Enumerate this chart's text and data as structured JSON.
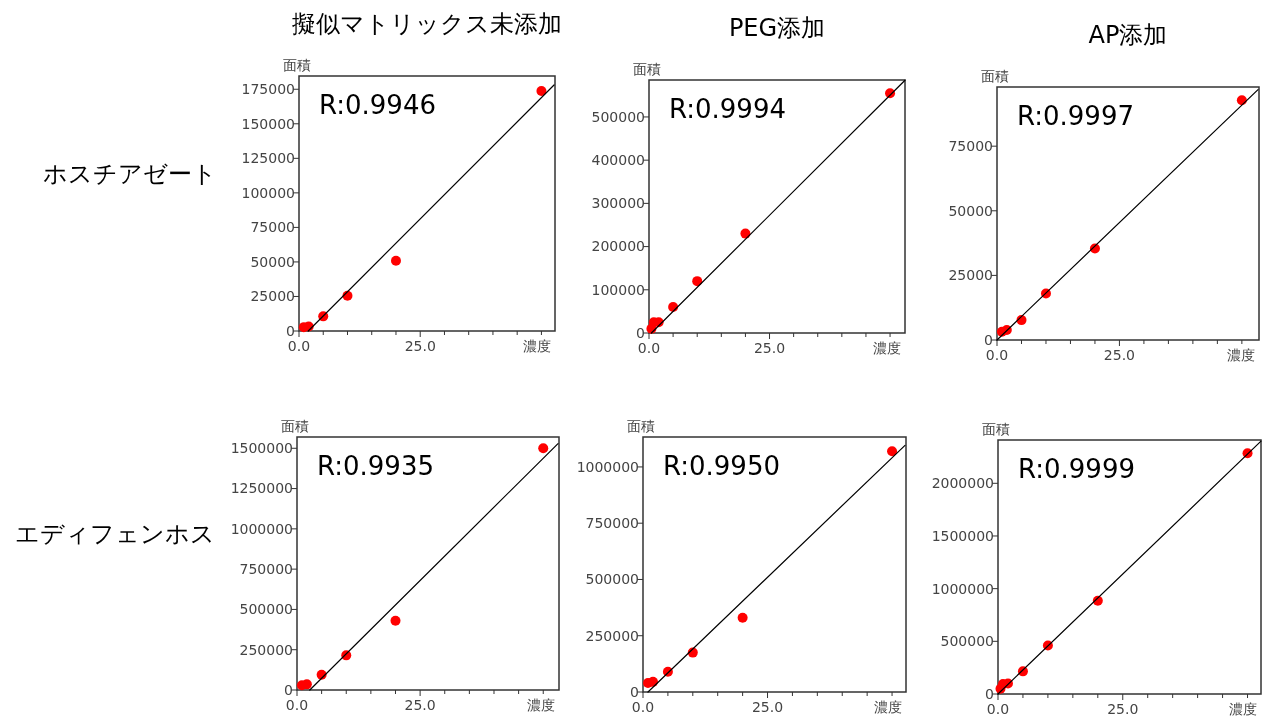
{
  "chart_data": [
    {
      "type": "scatter",
      "title": "擬似マトリックス未添加",
      "xlabel": "濃度",
      "ylabel": "面積",
      "annotations": [
        "R:0.9946",
        "ホスチアゼート"
      ],
      "xlim": [
        0,
        52.8
      ],
      "ylim": [
        0,
        184600
      ],
      "xticks": [
        {
          "value": 0,
          "label": "0.0"
        },
        {
          "value": 5,
          "label": null
        },
        {
          "value": 10,
          "label": null
        },
        {
          "value": 15,
          "label": null
        },
        {
          "value": 20,
          "label": null
        },
        {
          "value": 25,
          "label": "25.0"
        },
        {
          "value": 30,
          "label": null
        },
        {
          "value": 35,
          "label": null
        },
        {
          "value": 40,
          "label": null
        },
        {
          "value": 45,
          "label": null
        },
        {
          "value": 50,
          "label": null
        }
      ],
      "yticks": [
        0,
        25000,
        50000,
        75000,
        100000,
        125000,
        150000,
        175000
      ],
      "series": [
        {
          "type": "scatter",
          "marker": "circle",
          "color": "#ff0000",
          "x": [
            1,
            2,
            5,
            10,
            20,
            50
          ],
          "values": [
            2800,
            3200,
            10600,
            25500,
            50800,
            173800
          ]
        },
        {
          "type": "line",
          "color": "#000000",
          "x": [
            1.9,
            52.6
          ],
          "values": [
            0,
            178100
          ]
        }
      ]
    },
    {
      "type": "scatter",
      "title": "PEG添加",
      "xlabel": "濃度",
      "ylabel": "面積",
      "annotations": [
        "R:0.9994"
      ],
      "xlim": [
        0,
        53.1
      ],
      "ylim": [
        0,
        585500
      ],
      "xticks": [
        {
          "value": 0,
          "label": "0.0"
        },
        {
          "value": 5,
          "label": null
        },
        {
          "value": 10,
          "label": null
        },
        {
          "value": 15,
          "label": null
        },
        {
          "value": 20,
          "label": null
        },
        {
          "value": 25,
          "label": "25.0"
        },
        {
          "value": 30,
          "label": null
        },
        {
          "value": 35,
          "label": null
        },
        {
          "value": 40,
          "label": null
        },
        {
          "value": 45,
          "label": null
        },
        {
          "value": 50,
          "label": null
        }
      ],
      "yticks": [
        0,
        100000,
        200000,
        300000,
        400000,
        500000
      ],
      "series": [
        {
          "type": "scatter",
          "marker": "circle",
          "color": "#ff0000",
          "x": [
            0.5,
            1,
            2,
            5,
            10,
            20,
            50
          ],
          "values": [
            10000,
            25000,
            25000,
            60000,
            120000,
            230000,
            555000
          ]
        },
        {
          "type": "line",
          "color": "#000000",
          "x": [
            0.5,
            53.1
          ],
          "values": [
            0,
            585000
          ]
        }
      ]
    },
    {
      "type": "scatter",
      "title": "AP添加",
      "xlabel": "濃度",
      "ylabel": "面積",
      "annotations": [
        "R:0.9997"
      ],
      "xlim": [
        0,
        53.5
      ],
      "ylim": [
        0,
        97900
      ],
      "xticks": [
        {
          "value": 0,
          "label": "0.0"
        },
        {
          "value": 5,
          "label": null
        },
        {
          "value": 10,
          "label": null
        },
        {
          "value": 15,
          "label": null
        },
        {
          "value": 20,
          "label": null
        },
        {
          "value": 25,
          "label": "25.0"
        },
        {
          "value": 30,
          "label": null
        },
        {
          "value": 35,
          "label": null
        },
        {
          "value": 40,
          "label": null
        },
        {
          "value": 45,
          "label": null
        },
        {
          "value": 50,
          "label": null
        }
      ],
      "yticks": [
        0,
        25000,
        50000,
        75000
      ],
      "series": [
        {
          "type": "scatter",
          "marker": "circle",
          "color": "#ff0000",
          "x": [
            1,
            2,
            5,
            10,
            20,
            50
          ],
          "values": [
            3200,
            3900,
            7700,
            18000,
            35400,
            92800
          ]
        },
        {
          "type": "line",
          "color": "#000000",
          "x": [
            0,
            53.3
          ],
          "values": [
            0,
            96900
          ]
        }
      ]
    },
    {
      "type": "scatter",
      "xlabel": "濃度",
      "ylabel": "面積",
      "annotations": [
        "R:0.9935",
        "エディフェンホス"
      ],
      "xlim": [
        0,
        53.2
      ],
      "ylim": [
        0,
        1570000
      ],
      "xticks": [
        {
          "value": 0,
          "label": "0.0"
        },
        {
          "value": 5,
          "label": null
        },
        {
          "value": 10,
          "label": null
        },
        {
          "value": 15,
          "label": null
        },
        {
          "value": 20,
          "label": null
        },
        {
          "value": 25,
          "label": "25.0"
        },
        {
          "value": 30,
          "label": null
        },
        {
          "value": 35,
          "label": null
        },
        {
          "value": 40,
          "label": null
        },
        {
          "value": 45,
          "label": null
        },
        {
          "value": 50,
          "label": null
        }
      ],
      "yticks": [
        0,
        250000,
        500000,
        750000,
        1000000,
        1250000,
        1500000
      ],
      "series": [
        {
          "type": "scatter",
          "marker": "circle",
          "color": "#ff0000",
          "x": [
            1,
            2,
            5,
            10,
            20,
            50
          ],
          "values": [
            30000,
            35000,
            95000,
            215000,
            430000,
            1500000
          ]
        },
        {
          "type": "line",
          "color": "#000000",
          "x": [
            2.6,
            53
          ],
          "values": [
            0,
            1529000
          ]
        }
      ]
    },
    {
      "type": "scatter",
      "xlabel": "濃度",
      "ylabel": "面積",
      "annotations": [
        "R:0.9950"
      ],
      "xlim": [
        0,
        52.8
      ],
      "ylim": [
        0,
        1133000
      ],
      "xticks": [
        {
          "value": 0,
          "label": "0.0"
        },
        {
          "value": 5,
          "label": null
        },
        {
          "value": 10,
          "label": null
        },
        {
          "value": 15,
          "label": null
        },
        {
          "value": 20,
          "label": null
        },
        {
          "value": 25,
          "label": "25.0"
        },
        {
          "value": 30,
          "label": null
        },
        {
          "value": 35,
          "label": null
        },
        {
          "value": 40,
          "label": null
        },
        {
          "value": 45,
          "label": null
        },
        {
          "value": 50,
          "label": null
        }
      ],
      "yticks": [
        0,
        250000,
        500000,
        750000,
        1000000
      ],
      "series": [
        {
          "type": "scatter",
          "marker": "circle",
          "color": "#ff0000",
          "x": [
            1,
            2,
            5,
            10,
            20,
            50
          ],
          "values": [
            40000,
            45000,
            90000,
            175000,
            330000,
            1070000
          ]
        },
        {
          "type": "line",
          "color": "#000000",
          "x": [
            1,
            52.6
          ],
          "values": [
            0,
            1096000
          ]
        }
      ]
    },
    {
      "type": "scatter",
      "xlabel": "濃度",
      "ylabel": "面積",
      "annotations": [
        "R:0.9999"
      ],
      "xlim": [
        0,
        52.7
      ],
      "ylim": [
        0,
        2411000
      ],
      "xticks": [
        {
          "value": 0,
          "label": "0.0"
        },
        {
          "value": 5,
          "label": null
        },
        {
          "value": 10,
          "label": null
        },
        {
          "value": 15,
          "label": null
        },
        {
          "value": 20,
          "label": null
        },
        {
          "value": 25,
          "label": "25.0"
        },
        {
          "value": 30,
          "label": null
        },
        {
          "value": 35,
          "label": null
        },
        {
          "value": 40,
          "label": null
        },
        {
          "value": 45,
          "label": null
        },
        {
          "value": 50,
          "label": null
        }
      ],
      "yticks": [
        0,
        500000,
        1000000,
        1500000,
        2000000
      ],
      "series": [
        {
          "type": "scatter",
          "marker": "circle",
          "color": "#ff0000",
          "x": [
            0.5,
            1,
            2,
            5,
            10,
            20,
            50
          ],
          "values": [
            50000,
            95000,
            100000,
            215000,
            460000,
            885000,
            2285000
          ]
        },
        {
          "type": "line",
          "color": "#000000",
          "x": [
            0,
            52.7
          ],
          "values": [
            0,
            2400000
          ]
        }
      ]
    }
  ]
}
